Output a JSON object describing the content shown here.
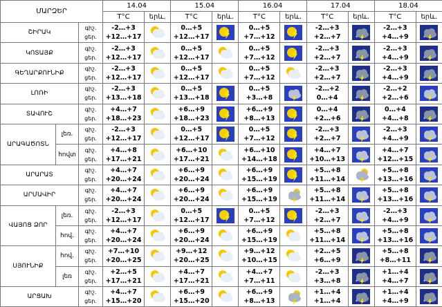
{
  "header": {
    "title": "ՄԱՐԶԵՐ",
    "dates": [
      "14.04",
      "15.04",
      "16.04",
      "17.04",
      "18.04"
    ],
    "temp_label": "T°C",
    "icon_label": "երև.",
    "night_label": "գիշ.",
    "day_label": "ցեր."
  },
  "regions": [
    {
      "name": "ՇԻՐԱԿ",
      "rows": [
        {
          "days": [
            {
              "night": "-2…+3",
              "day": "+12…+17"
            },
            {
              "night": "0…+5",
              "day": "+12…+17"
            },
            {
              "night": "0…+5",
              "day": "+7…+12"
            },
            {
              "night": "-2…+3",
              "day": "+2…+7"
            },
            {
              "night": "-2…+3",
              "day": "+4…+9"
            }
          ]
        }
      ]
    },
    {
      "name": "ԿՈՏԱՅՔ",
      "rows": [
        {
          "days": [
            {
              "night": "-2…+3",
              "day": "+12…+17"
            },
            {
              "night": "0…+5",
              "day": "+12…+17"
            },
            {
              "night": "0…+5",
              "day": "+7…+12"
            },
            {
              "night": "-2…+3",
              "day": "+2…+7"
            },
            {
              "night": "-2…+3",
              "day": "+4…+9"
            }
          ]
        }
      ]
    },
    {
      "name": "ԳԵՂԱՐՔՈՒՆԻՔ",
      "rows": [
        {
          "days": [
            {
              "night": "-2…+3",
              "day": "+12…+17"
            },
            {
              "night": "0…+5",
              "day": "+12…+17"
            },
            {
              "night": "0…+5",
              "day": "+7…+12"
            },
            {
              "night": "-2…+3",
              "day": "+2…+7"
            },
            {
              "night": "-2…+3",
              "day": "+4…+9"
            }
          ]
        }
      ]
    },
    {
      "name": "ԼՈՌԻ",
      "rows": [
        {
          "days": [
            {
              "night": "-2…+3",
              "day": "+13…+18"
            },
            {
              "night": "0…+5",
              "day": "+13…+18"
            },
            {
              "night": "0…+5",
              "day": "+3…+8"
            },
            {
              "night": "-2…+2",
              "day": "0…+4"
            },
            {
              "night": "-2…+2",
              "day": "+2…+6"
            }
          ]
        }
      ]
    },
    {
      "name": "ՏԱՎՈՒՇ",
      "rows": [
        {
          "days": [
            {
              "night": "+4…+7",
              "day": "+18…+23"
            },
            {
              "night": "+6…+9",
              "day": "+18…+23"
            },
            {
              "night": "+6…+9",
              "day": "+8…+13"
            },
            {
              "night": "0…+4",
              "day": "+2…+6"
            },
            {
              "night": "0…+4",
              "day": "+4…+8"
            }
          ]
        }
      ]
    },
    {
      "name": "ԱՐԱԳԱԾՈՏՆ",
      "rows": [
        {
          "zone": "լեռ.",
          "days": [
            {
              "night": "-2…+3",
              "day": "+12…+17"
            },
            {
              "night": "0…+5",
              "day": "+12…+17"
            },
            {
              "night": "0…+5",
              "day": "+7…+12"
            },
            {
              "night": "-2…+3",
              "day": "+2…+7"
            },
            {
              "night": "-2…+3",
              "day": "+4…+9"
            }
          ]
        },
        {
          "zone": "հովտ",
          "days": [
            {
              "night": "+4…+8",
              "day": "+17…+21"
            },
            {
              "night": "+6…+10",
              "day": "+17…+21"
            },
            {
              "night": "+6…+10",
              "day": "+14…+18"
            },
            {
              "night": "+4…+7",
              "day": "+10…+13"
            },
            {
              "night": "+4…+7",
              "day": "+12…+15"
            }
          ]
        }
      ]
    },
    {
      "name": "ԱՐԱՐԱՏ",
      "rows": [
        {
          "days": [
            {
              "night": "+4…+7",
              "day": "+20…+24"
            },
            {
              "night": "+6…+9",
              "day": "+20…+24"
            },
            {
              "night": "+6…+9",
              "day": "+15…+19"
            },
            {
              "night": "+5…+8",
              "day": "+11…+14"
            },
            {
              "night": "+5…+8",
              "day": "+13…+16"
            }
          ]
        }
      ]
    },
    {
      "name": "ԱՐՄԱՎԻՐ",
      "rows": [
        {
          "days": [
            {
              "night": "+4…+7",
              "day": "+20…+24"
            },
            {
              "night": "+6…+9",
              "day": "+20…+24"
            },
            {
              "night": "+6…+9",
              "day": "+15…+19"
            },
            {
              "night": "+5…+8",
              "day": "+11…+14"
            },
            {
              "night": "+5…+8",
              "day": "+13…+16"
            }
          ]
        }
      ]
    },
    {
      "name": "ՎԱՅՈՑ ՁՈՐ",
      "rows": [
        {
          "zone": "լեռ.",
          "days": [
            {
              "night": "-2…+3",
              "day": "+12…+17"
            },
            {
              "night": "0…+5",
              "day": "+12…+17"
            },
            {
              "night": "0…+5",
              "day": "+7…+12"
            },
            {
              "night": "-2…+3",
              "day": "+2…+7"
            },
            {
              "night": "-2…+3",
              "day": "+4…+9"
            }
          ]
        },
        {
          "zone": "հով.",
          "days": [
            {
              "night": "+4…+7",
              "day": "+20…+24"
            },
            {
              "night": "+6…+9",
              "day": "+20…+24"
            },
            {
              "night": "+6…+9",
              "day": "+15…+19"
            },
            {
              "night": "+5…+8",
              "day": "+11…+14"
            },
            {
              "night": "+5…+8",
              "day": "+13…+16"
            }
          ]
        }
      ]
    },
    {
      "name": "ՍՅՈՒՆԻՔ",
      "rows": [
        {
          "zone": "հով.",
          "days": [
            {
              "night": "+7…+10",
              "day": "+20…+25"
            },
            {
              "night": "+9…+12",
              "day": "+20…+25"
            },
            {
              "night": "+9…+12",
              "day": "+10…+15"
            },
            {
              "night": "+2…+5",
              "day": "+6…+9"
            },
            {
              "night": "+5…+8",
              "day": "+8…+11"
            }
          ]
        },
        {
          "zone": "լեռ",
          "days": [
            {
              "night": "+2…+5",
              "day": "+17…+21"
            },
            {
              "night": "+4…+7",
              "day": "+17…+21"
            },
            {
              "night": "+4…+7",
              "day": "+7…+11"
            },
            {
              "night": "-2…+3",
              "day": "+3…+8"
            },
            {
              "night": "+1…+4",
              "day": "+4…+7"
            }
          ]
        }
      ]
    },
    {
      "name": "ԱՐՑԱԽ",
      "rows": [
        {
          "days": [
            {
              "night": "+4…+7",
              "day": "+15…+20"
            },
            {
              "night": "+6…+9",
              "day": "+15…+20"
            },
            {
              "night": "+6…+9",
              "day": "+8…+13"
            },
            {
              "night": "+1…+4",
              "day": "+1…+4"
            },
            {
              "night": "+1…+4",
              "day": "+4…+9"
            }
          ]
        }
      ]
    }
  ]
}
